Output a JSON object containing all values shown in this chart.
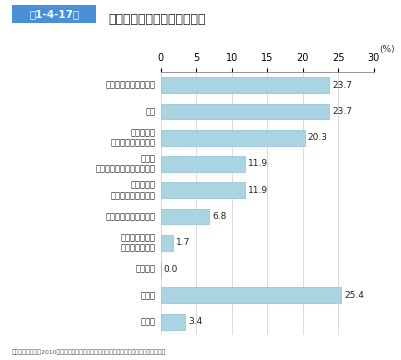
{
  "title": "ひきこもりになったきっかけ",
  "figure_label": "第1-4-17図",
  "categories": [
    "職場になじめなかった",
    "病気",
    "就職活動が\nうまくいかなかった",
    "不登校\n（小学校・中学校・高校）",
    "人間関係が\nうまくいかなかった",
    "大学になじめなかった",
    "受験に失敗した\n（高校・大学）",
    "妊娠した",
    "その他",
    "無回答"
  ],
  "values": [
    23.7,
    23.7,
    20.3,
    11.9,
    11.9,
    6.8,
    1.7,
    0.0,
    25.4,
    3.4
  ],
  "bar_color": "#aad4e2",
  "bar_edge_color": "#90bfcf",
  "xlim": [
    0,
    30
  ],
  "xticks": [
    0,
    5,
    10,
    15,
    20,
    25,
    30
  ],
  "source": "（出典）内閣府（2010）「若者の意識に関する調査（ひきこもりに関する実態調査）」",
  "fig_label_bg": "#4a90d9",
  "fig_label_color": "#ffffff",
  "background_color": "#ffffff"
}
